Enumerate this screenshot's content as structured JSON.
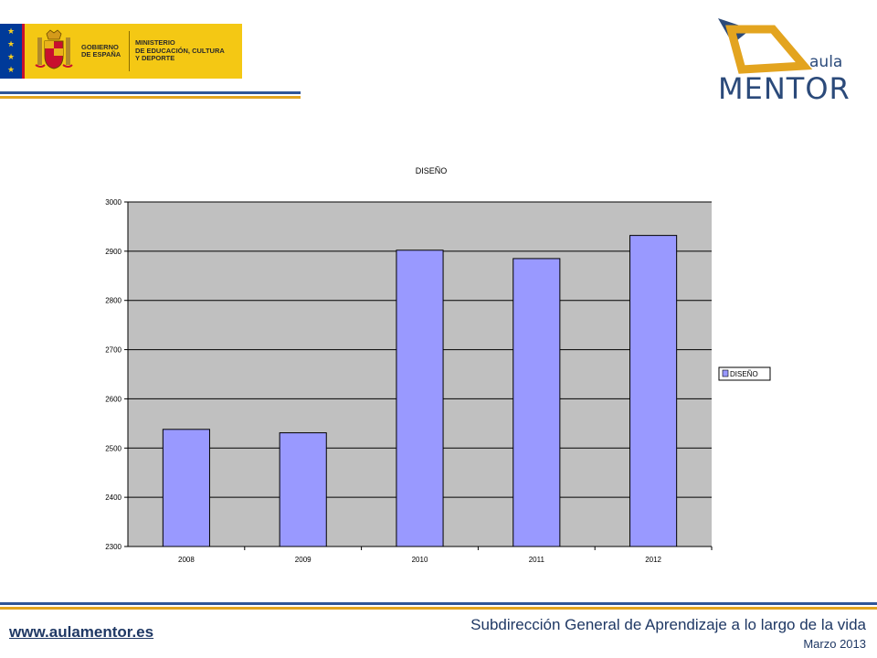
{
  "header": {
    "gov_logo": {
      "line1": "GOBIERNO",
      "line2": "DE ESPAÑA",
      "ministry1": "MINISTERIO",
      "ministry2": "DE EDUCACIÓN, CULTURA",
      "ministry3": "Y DEPORTE"
    },
    "mentor_logo": {
      "aula": "aula",
      "name": "MENTOR"
    }
  },
  "colors": {
    "bar_fill": "#9999ff",
    "plot_bg": "#c0c0c0",
    "brand_blue": "#2f5597",
    "brand_gold": "#e3a41f",
    "footer_text": "#1f3864"
  },
  "chart_data": {
    "type": "bar",
    "title": "DISEÑO",
    "categories": [
      "2008",
      "2009",
      "2010",
      "2011",
      "2012"
    ],
    "series": [
      {
        "name": "DISEÑO",
        "values": [
          2538,
          2531,
          2902,
          2885,
          2932
        ]
      }
    ],
    "yticks": [
      "2300",
      "2400",
      "2500",
      "2600",
      "2700",
      "2800",
      "2900",
      "3000"
    ],
    "ylim": [
      2300,
      3000
    ],
    "grid": true,
    "legend": "right"
  },
  "footer": {
    "url": "www.aulamentor.es",
    "subtitle": "Subdirección General de Aprendizaje a lo largo de la vida",
    "date": "Marzo 2013"
  }
}
